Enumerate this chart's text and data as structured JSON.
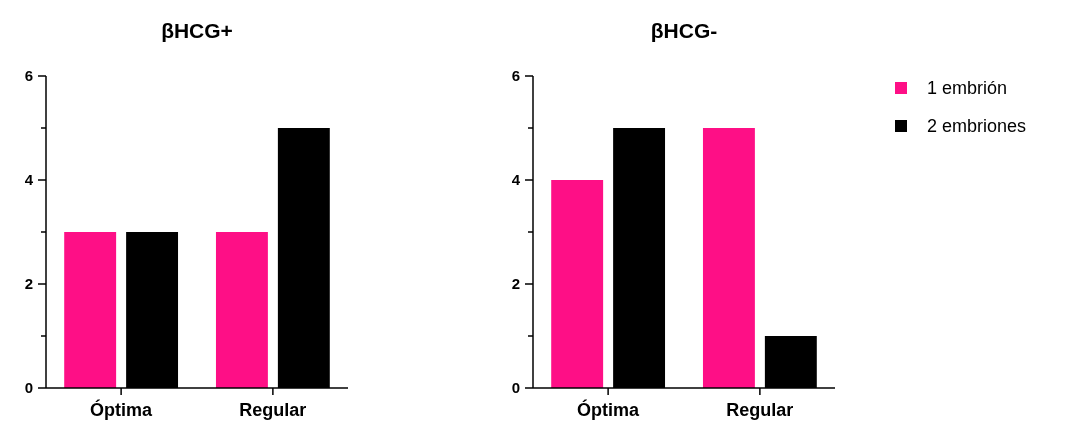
{
  "chart_data": [
    {
      "type": "bar",
      "title": "βHCG+",
      "categories": [
        "Óptima",
        "Regular"
      ],
      "series": [
        {
          "color": "#fe0f86",
          "values": [
            3,
            3
          ]
        },
        {
          "color": "#000000",
          "values": [
            3,
            5
          ]
        }
      ],
      "ylim": [
        0,
        6
      ],
      "yticks": [
        0,
        {
          "value": 1,
          "label": null
        },
        2,
        {
          "value": 3,
          "label": null
        },
        4,
        {
          "value": 5,
          "label": null
        },
        6
      ],
      "grid": false,
      "legend": false
    },
    {
      "type": "bar",
      "title": "βHCG-",
      "categories": [
        "Óptima",
        "Regular"
      ],
      "series": [
        {
          "name": "1 embrión",
          "color": "#fe0f86",
          "values": [
            4,
            5
          ]
        },
        {
          "name": "2 embriones",
          "color": "#000000",
          "values": [
            5,
            1
          ]
        }
      ],
      "ylim": [
        0,
        6
      ],
      "yticks": [
        0,
        {
          "value": 1,
          "label": null
        },
        2,
        {
          "value": 3,
          "label": null
        },
        4,
        {
          "value": 5,
          "label": null
        },
        6
      ],
      "grid": false,
      "legend": "right"
    }
  ]
}
